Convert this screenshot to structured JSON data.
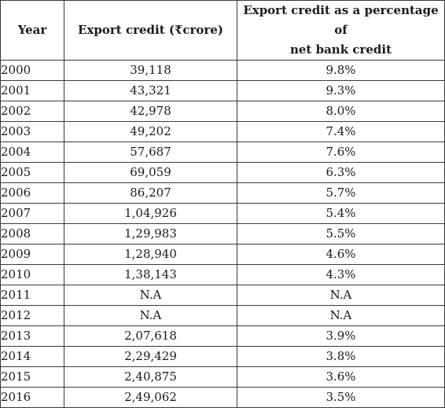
{
  "table": {
    "headers": {
      "year": "Year",
      "export_credit": "Export credit (₹crore)",
      "percentage_line1": "Export credit as a percentage of",
      "percentage_line2": "net bank credit"
    },
    "rows": [
      {
        "year": "2000",
        "credit": "39,118",
        "percent": "9.8%"
      },
      {
        "year": "2001",
        "credit": "43,321",
        "percent": "9.3%"
      },
      {
        "year": "2002",
        "credit": "42,978",
        "percent": "8.0%"
      },
      {
        "year": "2003",
        "credit": "49,202",
        "percent": "7.4%"
      },
      {
        "year": "2004",
        "credit": "57,687",
        "percent": "7.6%"
      },
      {
        "year": "2005",
        "credit": "69,059",
        "percent": "6.3%"
      },
      {
        "year": "2006",
        "credit": "86,207",
        "percent": "5.7%"
      },
      {
        "year": "2007",
        "credit": "1,04,926",
        "percent": "5.4%"
      },
      {
        "year": "2008",
        "credit": "1,29,983",
        "percent": "5.5%"
      },
      {
        "year": "2009",
        "credit": "1,28,940",
        "percent": "4.6%"
      },
      {
        "year": "2010",
        "credit": "1,38,143",
        "percent": "4.3%"
      },
      {
        "year": "2011",
        "credit": "N.A",
        "percent": "N.A"
      },
      {
        "year": "2012",
        "credit": "N.A",
        "percent": "N.A"
      },
      {
        "year": "2013",
        "credit": "2,07,618",
        "percent": "3.9%"
      },
      {
        "year": "2014",
        "credit": "2,29,429",
        "percent": "3.8%"
      },
      {
        "year": "2015",
        "credit": "2,40,875",
        "percent": "3.6%"
      },
      {
        "year": "2016",
        "credit": "2,49,062",
        "percent": "3.5%"
      }
    ]
  }
}
